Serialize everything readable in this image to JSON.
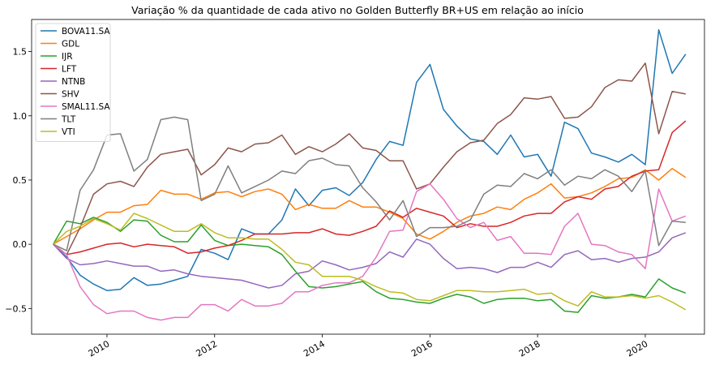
{
  "chart_data": {
    "type": "line",
    "title": "Variação % da quantidade de cada ativo no Golden Butterfly BR+US em relação ao início",
    "xlabel": "",
    "ylabel": "",
    "xlim": [
      2008.6,
      2021.1
    ],
    "ylim": [
      -0.7,
      1.75
    ],
    "x_ticks": [
      {
        "value": 2010,
        "label": "2010"
      },
      {
        "value": 2012,
        "label": "2012"
      },
      {
        "value": 2014,
        "label": "2014"
      },
      {
        "value": 2016,
        "label": "2016"
      },
      {
        "value": 2018,
        "label": "2018"
      },
      {
        "value": 2020,
        "label": "2020"
      }
    ],
    "y_ticks": [
      {
        "value": -0.5,
        "label": "−0.5"
      },
      {
        "value": 0.0,
        "label": "0.0"
      },
      {
        "value": 0.5,
        "label": "0.5"
      },
      {
        "value": 1.0,
        "label": "1.0"
      },
      {
        "value": 1.5,
        "label": "1.5"
      }
    ],
    "legend_position": "top-left",
    "grid": false,
    "x": [
      2009.0,
      2009.25,
      2009.5,
      2009.75,
      2010.0,
      2010.25,
      2010.5,
      2010.75,
      2011.0,
      2011.25,
      2011.5,
      2011.75,
      2012.0,
      2012.25,
      2012.5,
      2012.75,
      2013.0,
      2013.25,
      2013.5,
      2013.75,
      2014.0,
      2014.25,
      2014.5,
      2014.75,
      2015.0,
      2015.25,
      2015.5,
      2015.75,
      2016.0,
      2016.25,
      2016.5,
      2016.75,
      2017.0,
      2017.25,
      2017.5,
      2017.75,
      2018.0,
      2018.25,
      2018.5,
      2018.75,
      2019.0,
      2019.25,
      2019.5,
      2019.75,
      2020.0,
      2020.25,
      2020.5,
      2020.75
    ],
    "series": [
      {
        "name": "BOVA11.SA",
        "color": "#1f77b4",
        "values": [
          0.0,
          -0.1,
          -0.24,
          -0.31,
          -0.36,
          -0.35,
          -0.26,
          -0.32,
          -0.31,
          -0.28,
          -0.25,
          -0.04,
          -0.07,
          -0.12,
          0.12,
          0.08,
          0.08,
          0.19,
          0.43,
          0.3,
          0.42,
          0.44,
          0.38,
          0.48,
          0.66,
          0.8,
          0.77,
          1.26,
          1.4,
          1.05,
          0.92,
          0.82,
          0.8,
          0.7,
          0.85,
          0.68,
          0.7,
          0.53,
          0.95,
          0.9,
          0.71,
          0.68,
          0.64,
          0.7,
          0.62,
          1.67,
          1.33,
          1.48
        ]
      },
      {
        "name": "GDL",
        "color": "#ff7f0e",
        "values": [
          0.0,
          0.06,
          0.12,
          0.19,
          0.25,
          0.25,
          0.3,
          0.31,
          0.42,
          0.39,
          0.39,
          0.35,
          0.4,
          0.41,
          0.37,
          0.41,
          0.43,
          0.39,
          0.27,
          0.31,
          0.28,
          0.28,
          0.34,
          0.29,
          0.29,
          0.25,
          0.2,
          0.08,
          0.04,
          0.1,
          0.17,
          0.22,
          0.24,
          0.29,
          0.27,
          0.35,
          0.4,
          0.47,
          0.36,
          0.37,
          0.4,
          0.45,
          0.51,
          0.52,
          0.58,
          0.5,
          0.59,
          0.52
        ]
      },
      {
        "name": "IJR",
        "color": "#2ca02c",
        "values": [
          0.0,
          0.18,
          0.16,
          0.21,
          0.17,
          0.1,
          0.19,
          0.18,
          0.07,
          0.02,
          0.02,
          0.15,
          0.03,
          -0.01,
          0.0,
          -0.01,
          -0.02,
          -0.08,
          -0.21,
          -0.33,
          -0.34,
          -0.33,
          -0.31,
          -0.29,
          -0.37,
          -0.42,
          -0.43,
          -0.45,
          -0.46,
          -0.42,
          -0.39,
          -0.41,
          -0.46,
          -0.43,
          -0.42,
          -0.42,
          -0.44,
          -0.43,
          -0.52,
          -0.53,
          -0.4,
          -0.42,
          -0.41,
          -0.39,
          -0.41,
          -0.27,
          -0.34,
          -0.38
        ]
      },
      {
        "name": "LFT",
        "color": "#d62728",
        "values": [
          0.0,
          -0.08,
          -0.06,
          -0.03,
          0.0,
          0.01,
          -0.02,
          0.0,
          -0.01,
          -0.02,
          -0.07,
          -0.06,
          -0.03,
          -0.01,
          0.03,
          0.08,
          0.08,
          0.08,
          0.09,
          0.09,
          0.12,
          0.08,
          0.07,
          0.1,
          0.14,
          0.26,
          0.21,
          0.28,
          0.25,
          0.22,
          0.13,
          0.16,
          0.14,
          0.14,
          0.17,
          0.22,
          0.24,
          0.24,
          0.33,
          0.37,
          0.35,
          0.43,
          0.45,
          0.53,
          0.57,
          0.58,
          0.87,
          0.96
        ]
      },
      {
        "name": "NTNB",
        "color": "#9467bd",
        "values": [
          0.0,
          -0.11,
          -0.16,
          -0.15,
          -0.13,
          -0.15,
          -0.17,
          -0.17,
          -0.21,
          -0.2,
          -0.23,
          -0.25,
          -0.26,
          -0.27,
          -0.28,
          -0.31,
          -0.34,
          -0.32,
          -0.23,
          -0.21,
          -0.13,
          -0.16,
          -0.2,
          -0.18,
          -0.15,
          -0.06,
          -0.1,
          0.04,
          0.0,
          -0.11,
          -0.19,
          -0.18,
          -0.19,
          -0.22,
          -0.18,
          -0.18,
          -0.14,
          -0.18,
          -0.08,
          -0.05,
          -0.12,
          -0.11,
          -0.14,
          -0.11,
          -0.1,
          -0.06,
          0.05,
          0.09
        ]
      },
      {
        "name": "SHV",
        "color": "#8c564b",
        "values": [
          0.0,
          -0.08,
          0.13,
          0.39,
          0.47,
          0.49,
          0.45,
          0.6,
          0.7,
          0.72,
          0.74,
          0.54,
          0.62,
          0.75,
          0.72,
          0.78,
          0.79,
          0.85,
          0.7,
          0.76,
          0.72,
          0.78,
          0.86,
          0.75,
          0.73,
          0.65,
          0.65,
          0.43,
          0.47,
          0.6,
          0.72,
          0.79,
          0.81,
          0.94,
          1.01,
          1.14,
          1.13,
          1.15,
          0.98,
          0.99,
          1.07,
          1.22,
          1.28,
          1.27,
          1.41,
          0.86,
          1.19,
          1.17
        ]
      },
      {
        "name": "SMAL11.SA",
        "color": "#e377c2",
        "values": [
          0.0,
          -0.08,
          -0.33,
          -0.47,
          -0.54,
          -0.52,
          -0.52,
          -0.57,
          -0.59,
          -0.57,
          -0.57,
          -0.47,
          -0.47,
          -0.52,
          -0.43,
          -0.48,
          -0.48,
          -0.46,
          -0.37,
          -0.37,
          -0.32,
          -0.3,
          -0.3,
          -0.25,
          -0.1,
          0.1,
          0.11,
          0.41,
          0.47,
          0.35,
          0.2,
          0.13,
          0.17,
          0.03,
          0.06,
          -0.07,
          -0.07,
          -0.08,
          0.14,
          0.24,
          0.0,
          -0.01,
          -0.06,
          -0.08,
          -0.19,
          0.43,
          0.18,
          0.22
        ]
      },
      {
        "name": "TLT",
        "color": "#7f7f7f",
        "values": [
          0.0,
          -0.05,
          0.42,
          0.58,
          0.85,
          0.86,
          0.57,
          0.66,
          0.97,
          0.99,
          0.97,
          0.34,
          0.39,
          0.61,
          0.4,
          0.45,
          0.5,
          0.57,
          0.55,
          0.65,
          0.67,
          0.62,
          0.61,
          0.44,
          0.33,
          0.19,
          0.34,
          0.06,
          0.13,
          0.13,
          0.14,
          0.19,
          0.39,
          0.46,
          0.45,
          0.55,
          0.51,
          0.58,
          0.46,
          0.53,
          0.51,
          0.58,
          0.53,
          0.41,
          0.57,
          -0.01,
          0.18,
          0.17
        ]
      },
      {
        "name": "VTI",
        "color": "#bcbd22",
        "values": [
          0.0,
          0.1,
          0.14,
          0.2,
          0.16,
          0.11,
          0.24,
          0.2,
          0.15,
          0.1,
          0.1,
          0.16,
          0.09,
          0.05,
          0.05,
          0.04,
          0.04,
          -0.04,
          -0.14,
          -0.16,
          -0.25,
          -0.25,
          -0.25,
          -0.28,
          -0.33,
          -0.37,
          -0.38,
          -0.43,
          -0.44,
          -0.4,
          -0.36,
          -0.36,
          -0.37,
          -0.37,
          -0.36,
          -0.35,
          -0.39,
          -0.38,
          -0.44,
          -0.48,
          -0.37,
          -0.41,
          -0.41,
          -0.4,
          -0.42,
          -0.4,
          -0.45,
          -0.51
        ]
      }
    ]
  }
}
